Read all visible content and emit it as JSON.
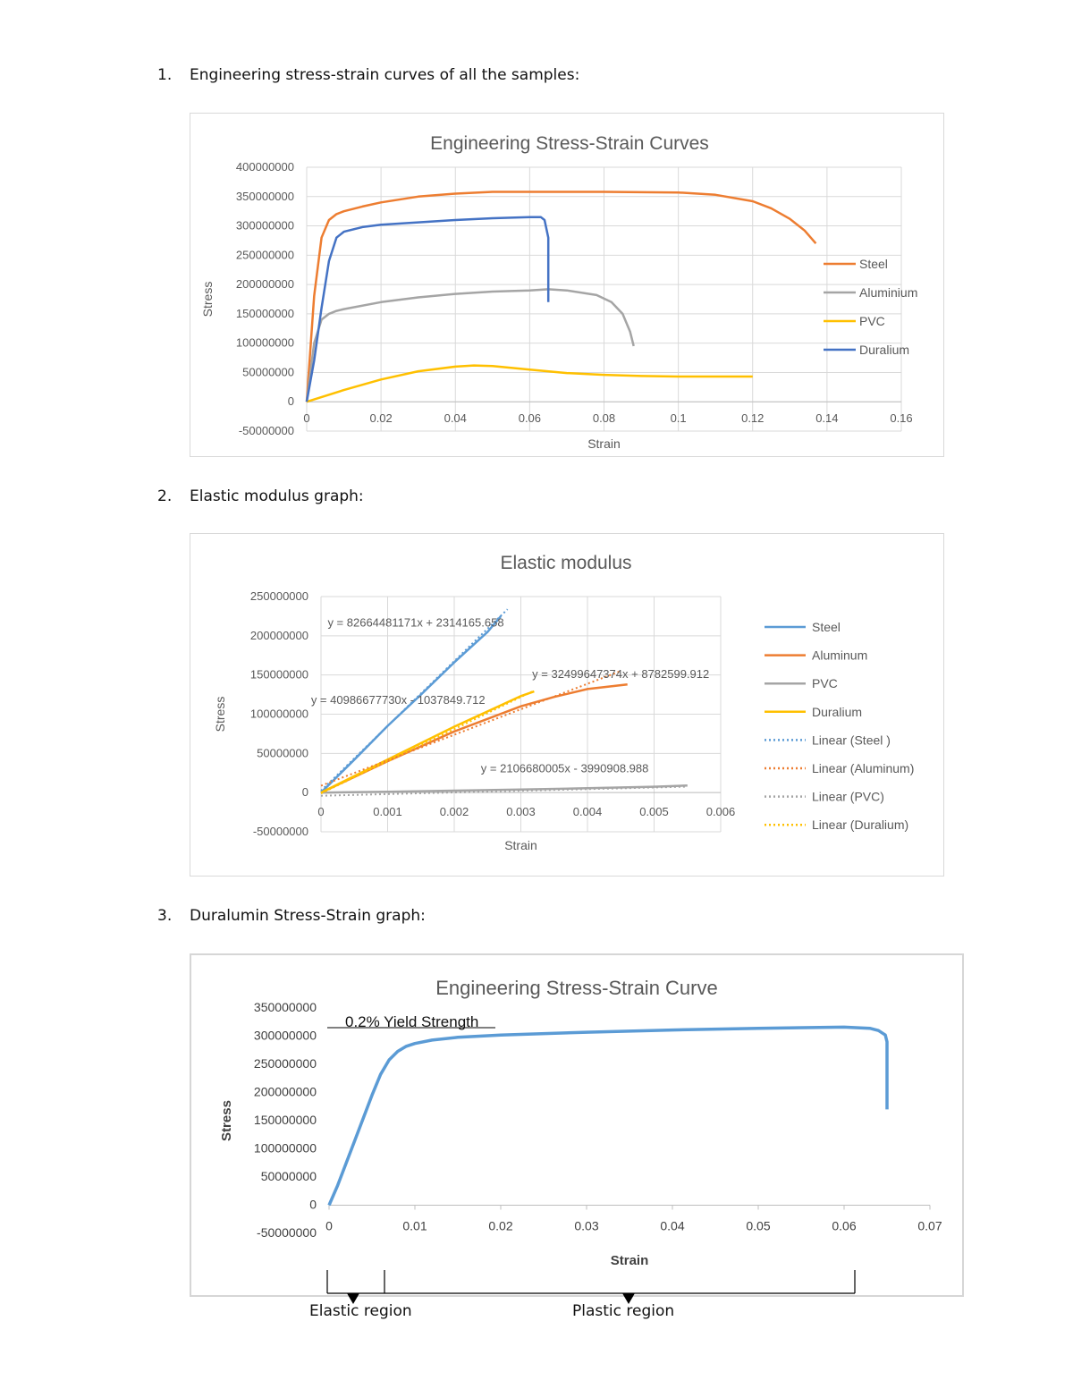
{
  "headings": [
    {
      "num": "1.",
      "text": "Engineering stress-strain curves of all the samples:"
    },
    {
      "num": "2.",
      "text": "Elastic modulus graph:"
    },
    {
      "num": "3.",
      "text": "Duralumin Stress-Strain graph:"
    }
  ],
  "colors": {
    "steel": "#ed7d31",
    "aluminium": "#a5a5a5",
    "pvc": "#ffc000",
    "duralium": "#4472c4",
    "steel2": "#5b9bd5",
    "grid": "#d9d9d9",
    "axis_text": "#595959"
  },
  "chart_data": [
    {
      "type": "line",
      "title": "Engineering Stress-Strain Curves",
      "xlabel": "Strain",
      "ylabel": "Stress",
      "xlim": [
        0,
        0.16
      ],
      "ylim": [
        -50000000,
        400000000
      ],
      "x_ticks": [
        "0",
        "0.02",
        "0.04",
        "0.06",
        "0.08",
        "0.1",
        "0.12",
        "0.14",
        "0.16"
      ],
      "y_ticks": [
        "-50000000",
        "0",
        "50000000",
        "100000000",
        "150000000",
        "200000000",
        "250000000",
        "300000000",
        "350000000",
        "400000000"
      ],
      "grid": true,
      "legend": "right",
      "series": [
        {
          "name": "Steel",
          "x": [
            0,
            0.002,
            0.004,
            0.006,
            0.008,
            0.01,
            0.015,
            0.02,
            0.03,
            0.04,
            0.05,
            0.06,
            0.08,
            0.1,
            0.11,
            0.12,
            0.125,
            0.13,
            0.134,
            0.137
          ],
          "y": [
            0,
            180000000,
            280000000,
            310000000,
            320000000,
            325000000,
            333000000,
            340000000,
            350000000,
            355000000,
            358000000,
            358000000,
            358000000,
            357000000,
            353000000,
            342000000,
            330000000,
            312000000,
            292000000,
            270000000
          ]
        },
        {
          "name": "Aluminium",
          "x": [
            0,
            0.002,
            0.004,
            0.006,
            0.008,
            0.01,
            0.02,
            0.03,
            0.04,
            0.05,
            0.06,
            0.065,
            0.07,
            0.078,
            0.082,
            0.085,
            0.087,
            0.088
          ],
          "y": [
            0,
            100000000,
            140000000,
            150000000,
            155000000,
            158000000,
            170000000,
            178000000,
            184000000,
            188000000,
            190000000,
            192000000,
            190000000,
            182000000,
            170000000,
            150000000,
            120000000,
            95000000
          ]
        },
        {
          "name": "PVC",
          "x": [
            0,
            0.01,
            0.02,
            0.03,
            0.04,
            0.045,
            0.05,
            0.06,
            0.07,
            0.08,
            0.09,
            0.1,
            0.11,
            0.12
          ],
          "y": [
            0,
            20000000,
            38000000,
            52000000,
            60000000,
            62000000,
            61000000,
            55000000,
            49000000,
            46000000,
            44000000,
            43000000,
            43000000,
            43000000
          ]
        },
        {
          "name": "Duralium",
          "x": [
            0,
            0.002,
            0.004,
            0.006,
            0.008,
            0.01,
            0.015,
            0.02,
            0.03,
            0.04,
            0.05,
            0.06,
            0.063,
            0.064,
            0.065,
            0.065
          ],
          "y": [
            0,
            70000000,
            160000000,
            240000000,
            280000000,
            290000000,
            298000000,
            302000000,
            306000000,
            310000000,
            313000000,
            315000000,
            315000000,
            310000000,
            280000000,
            170000000
          ]
        }
      ]
    },
    {
      "type": "line",
      "title": "Elastic modulus",
      "xlabel": "Strain",
      "ylabel": "Stress",
      "xlim": [
        0,
        0.006
      ],
      "ylim": [
        -50000000,
        250000000
      ],
      "x_ticks": [
        "0",
        "0.001",
        "0.002",
        "0.003",
        "0.004",
        "0.005",
        "0.006"
      ],
      "y_ticks": [
        "-50000000",
        "0",
        "50000000",
        "100000000",
        "150000000",
        "200000000",
        "250000000"
      ],
      "grid": true,
      "legend": "right",
      "series": [
        {
          "name": "Steel",
          "x": [
            0,
            0.0005,
            0.001,
            0.0015,
            0.002,
            0.0025,
            0.0027
          ],
          "y": [
            0,
            42000000,
            85000000,
            125000000,
            166000000,
            205000000,
            225000000
          ]
        },
        {
          "name": "Aluminum",
          "x": [
            0,
            0.001,
            0.002,
            0.003,
            0.0035,
            0.004,
            0.0046
          ],
          "y": [
            0,
            40000000,
            78000000,
            110000000,
            122000000,
            132000000,
            138000000
          ]
        },
        {
          "name": "PVC",
          "x": [
            0,
            0.001,
            0.002,
            0.003,
            0.004,
            0.005,
            0.0055
          ],
          "y": [
            0,
            1000000,
            2500000,
            4000000,
            5500000,
            7500000,
            9000000
          ]
        },
        {
          "name": "Duralium",
          "x": [
            0,
            0.001,
            0.002,
            0.003,
            0.0032
          ],
          "y": [
            0,
            42000000,
            84000000,
            123000000,
            129000000
          ]
        },
        {
          "name": "Linear (Steel )",
          "x": [
            0,
            0.0028
          ],
          "y": [
            2314165.658,
            233770000
          ]
        },
        {
          "name": "Linear (Aluminum)",
          "x": [
            0,
            0.0045
          ],
          "y": [
            8782599.912,
            155020000
          ]
        },
        {
          "name": "Linear (PVC)",
          "x": [
            0,
            0.0055
          ],
          "y": [
            -3990908.988,
            7600000
          ]
        },
        {
          "name": "Linear (Duralium)",
          "x": [
            0,
            0.0032
          ],
          "y": [
            -1037849.712,
            130130000
          ]
        }
      ],
      "annotations": [
        {
          "text": "y = 82664481171x + 2314165.658",
          "x": 0.0001,
          "y": 212000000
        },
        {
          "text": "y = 32499647374x + 8782599.912",
          "x": 0.00317,
          "y": 146000000
        },
        {
          "text": "y = 40986677730x - 1037849.712",
          "x": -0.00015,
          "y": 113000000
        },
        {
          "text": "y = 2106680005x - 3990908.988",
          "x": 0.0024,
          "y": 26000000
        }
      ]
    },
    {
      "type": "line",
      "title": "Engineering Stress-Strain Curve",
      "xlabel": "Strain",
      "ylabel": "Stress",
      "xlim": [
        0,
        0.07
      ],
      "ylim": [
        -50000000,
        350000000
      ],
      "x_ticks": [
        "0",
        "0.01",
        "0.02",
        "0.03",
        "0.04",
        "0.05",
        "0.06",
        "0.07"
      ],
      "y_ticks": [
        "-50000000",
        "0",
        "50000000",
        "100000000",
        "150000000",
        "200000000",
        "250000000",
        "300000000",
        "350000000"
      ],
      "grid": false,
      "series": [
        {
          "x": [
            0,
            0.001,
            0.002,
            0.003,
            0.004,
            0.005,
            0.006,
            0.007,
            0.008,
            0.009,
            0.01,
            0.012,
            0.015,
            0.02,
            0.03,
            0.04,
            0.05,
            0.06,
            0.063,
            0.064,
            0.0648,
            0.065,
            0.065
          ],
          "y": [
            0,
            35000000,
            75000000,
            115000000,
            155000000,
            195000000,
            232000000,
            258000000,
            273000000,
            282000000,
            287000000,
            293000000,
            298000000,
            302000000,
            307000000,
            311000000,
            314000000,
            316000000,
            314000000,
            310000000,
            302000000,
            290000000,
            170000000
          ]
        }
      ],
      "annotations": [
        {
          "text": "0.2% Yield Strength"
        }
      ]
    }
  ],
  "regions": {
    "elastic": "Elastic region",
    "plastic": "Plastic region"
  }
}
